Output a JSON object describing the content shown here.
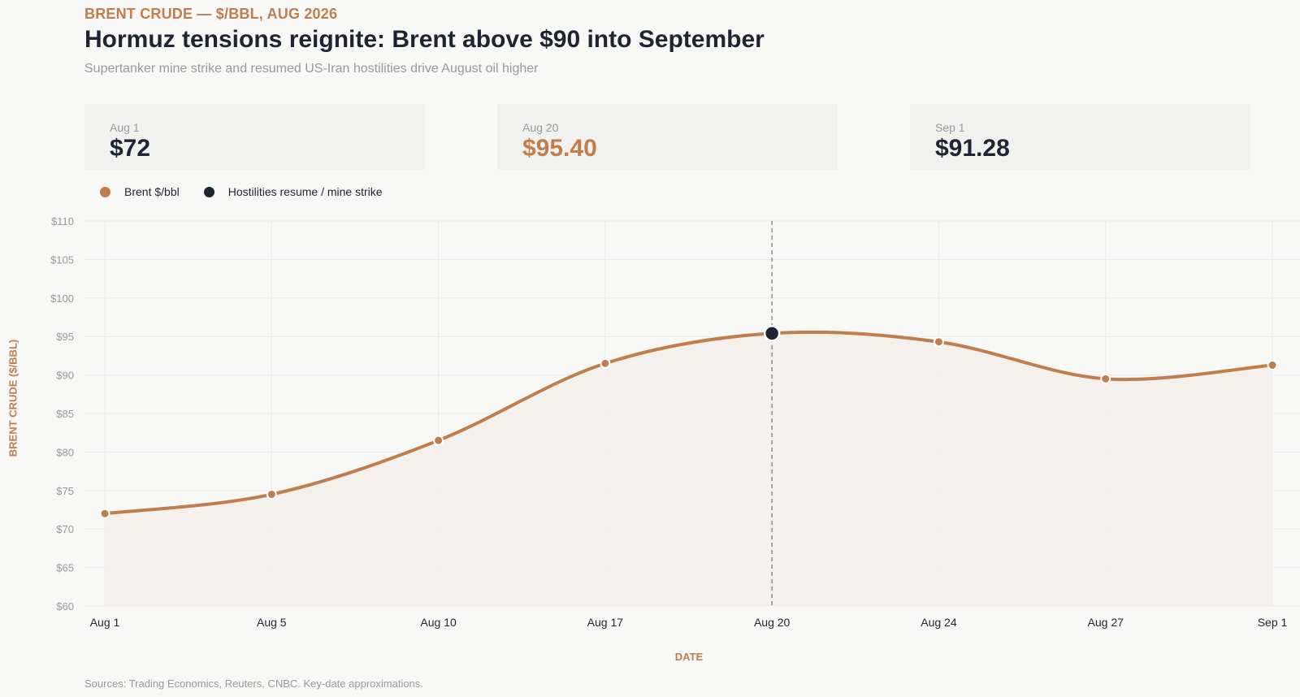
{
  "header": {
    "eyebrow": "BRENT CRUDE — $/BBL, AUG 2026",
    "title": "Hormuz tensions reignite: Brent above $90 into September",
    "subtitle": "Supertanker mine strike and resumed US-Iran hostilities drive August oil higher"
  },
  "cards": [
    {
      "label": "Aug 1",
      "value": "$72"
    },
    {
      "label": "Aug 20",
      "value": "$95.40"
    },
    {
      "label": "Sep 1",
      "value": "$91.28"
    }
  ],
  "legend": {
    "series_label": "Brent $/bbl",
    "event_label": "Hostilities resume / mine strike"
  },
  "colors": {
    "accent": "#c17d4b",
    "dark": "#1e2433",
    "muted": "#999999",
    "fill": "#f3efe9"
  },
  "chart_data": {
    "type": "line",
    "title": "Hormuz tensions reignite: Brent above $90 into September",
    "xlabel": "DATE",
    "ylabel": "BRENT CRUDE ($/BBL)",
    "categories": [
      "Aug 1",
      "Aug 5",
      "Aug 10",
      "Aug 17",
      "Aug 20",
      "Aug 24",
      "Aug 27",
      "Sep 1"
    ],
    "series": [
      {
        "name": "Brent $/bbl",
        "values": [
          72,
          74.5,
          81.5,
          91.5,
          95.4,
          94.3,
          89.5,
          91.28
        ]
      }
    ],
    "event": {
      "name": "Hostilities resume / mine strike",
      "category": "Aug 20",
      "value": 95.4
    },
    "ylim": [
      60,
      110
    ],
    "yticks": [
      60,
      65,
      70,
      75,
      80,
      85,
      90,
      95,
      100,
      105,
      110
    ],
    "ytick_labels": [
      "$60",
      "$65",
      "$70",
      "$75",
      "$80",
      "$85",
      "$90",
      "$95",
      "$100",
      "$105",
      "$110"
    ],
    "grid": true,
    "area_fill": true,
    "legend_position": "top-left"
  },
  "footer": {
    "sources": "Sources: Trading Economics, Reuters, CNBC. Key-date approximations."
  }
}
